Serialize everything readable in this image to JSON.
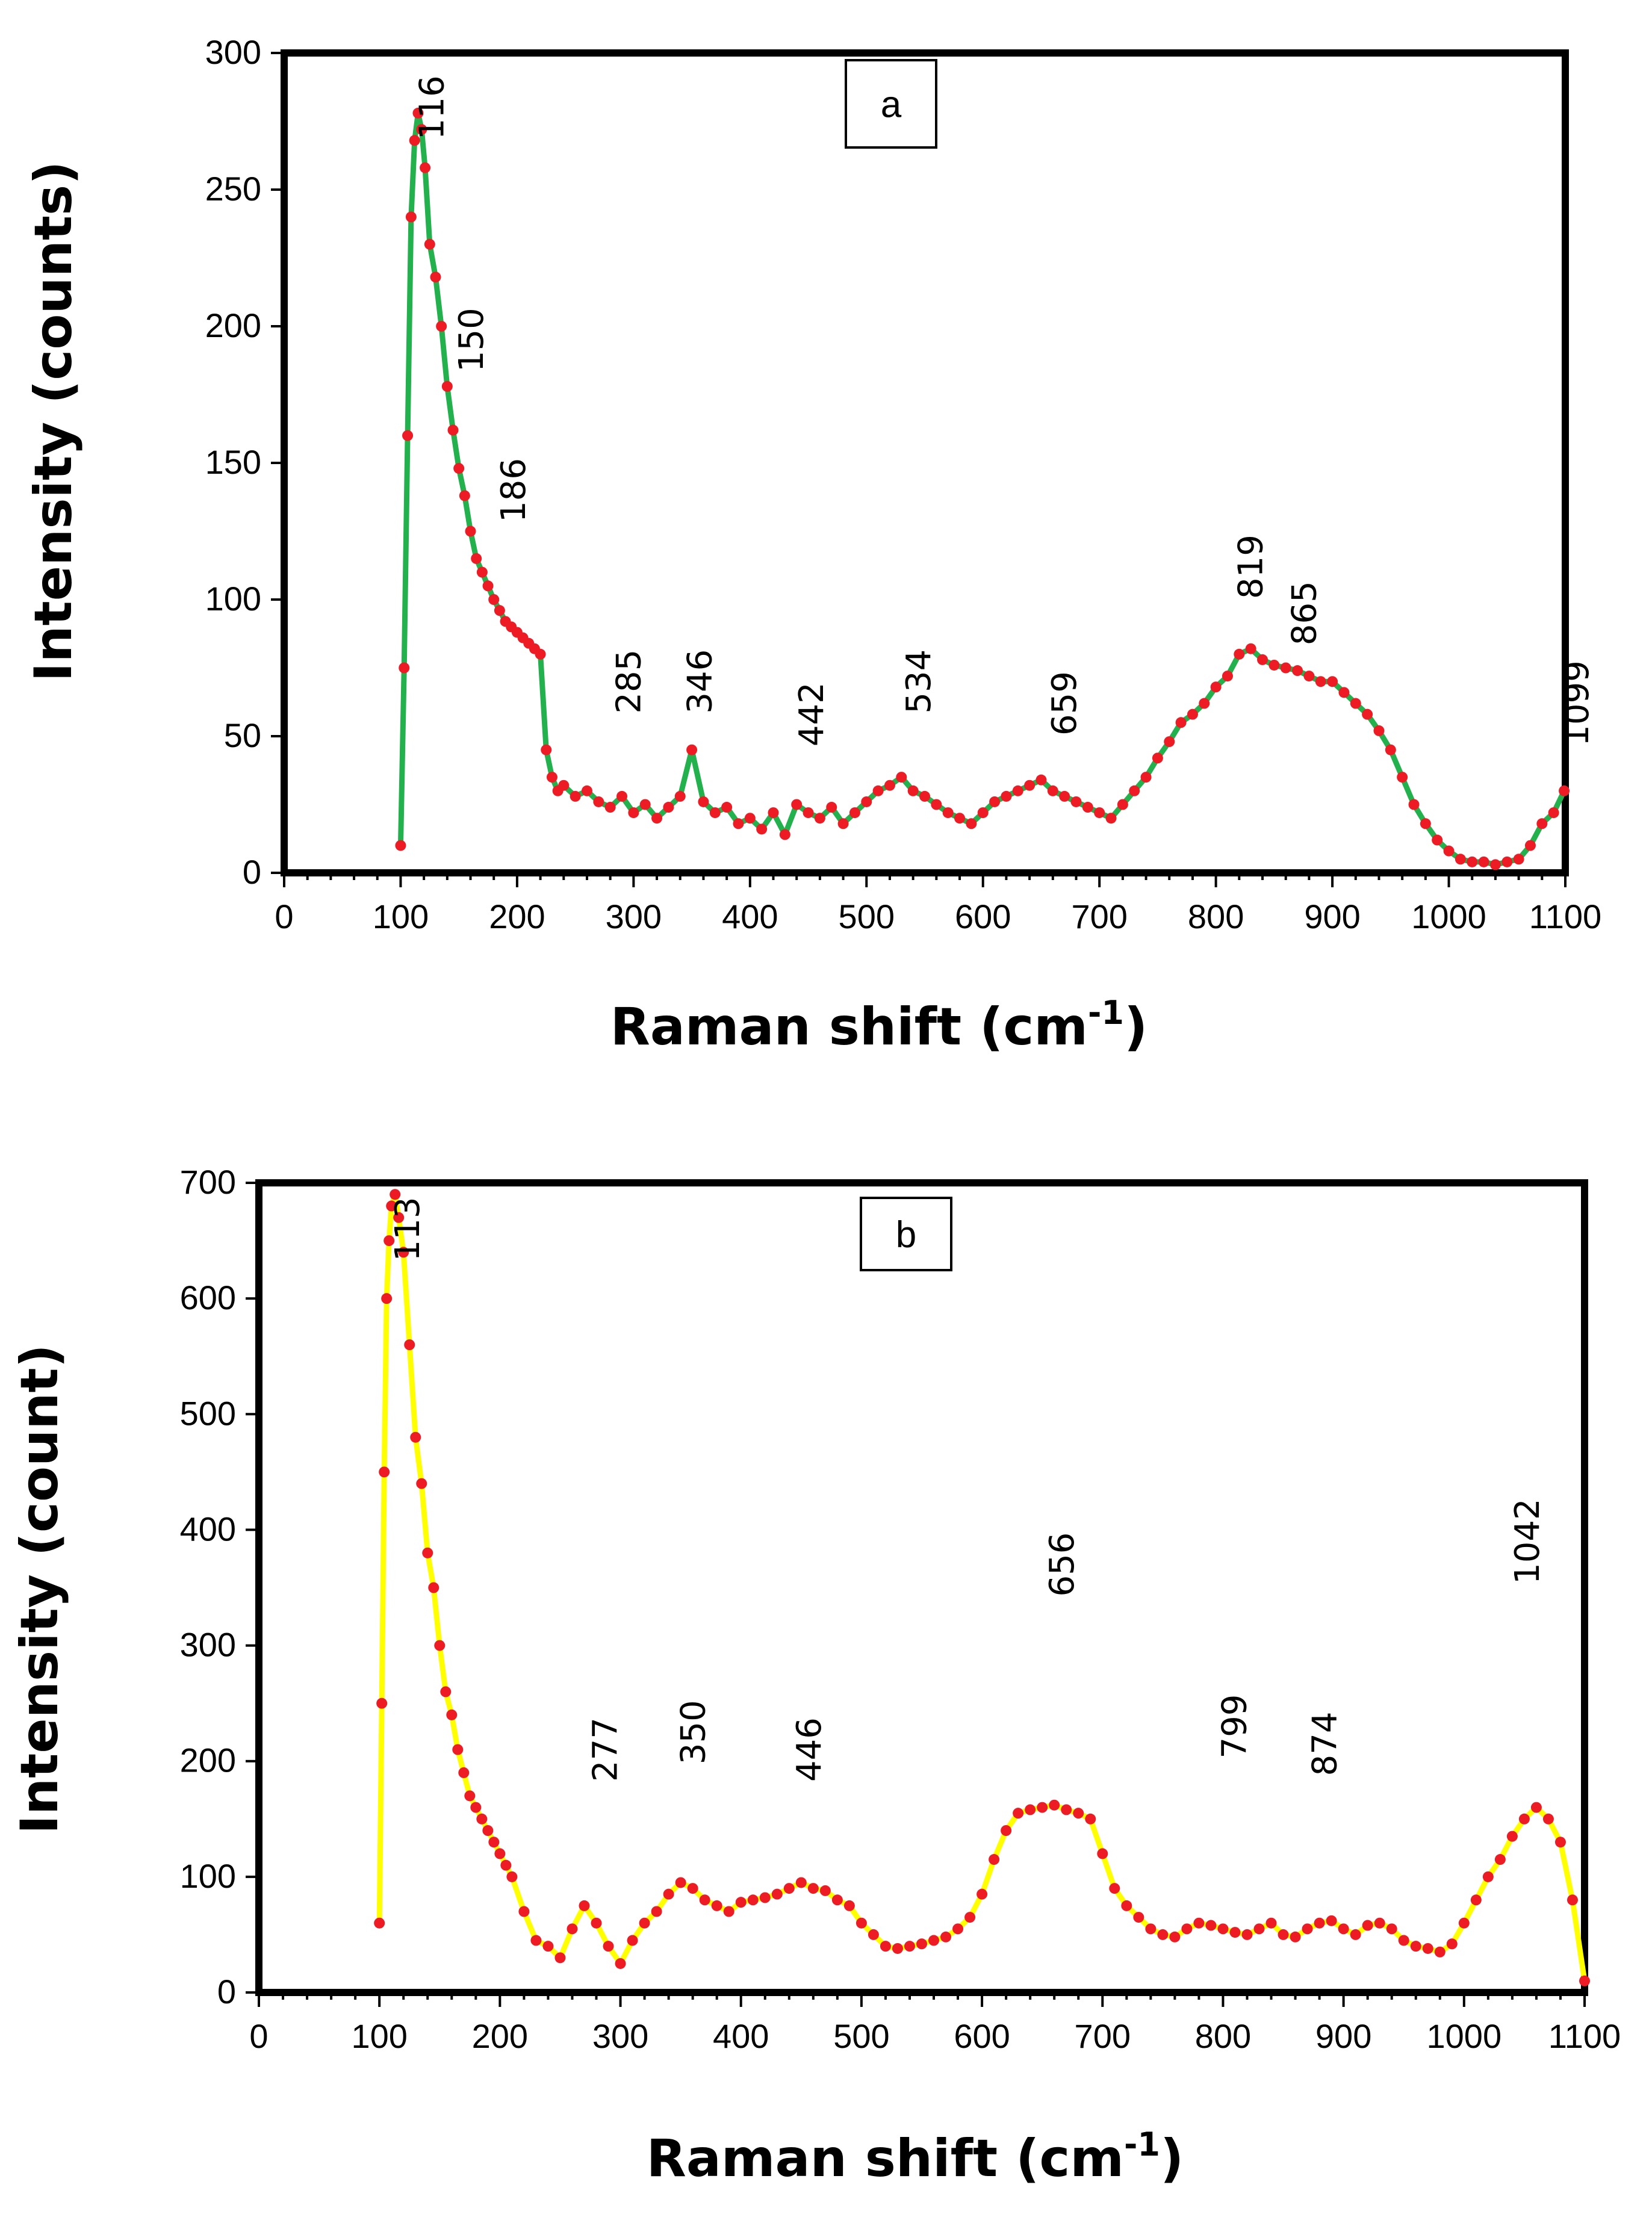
{
  "chart_data": [
    {
      "type": "line",
      "panel_label": "a",
      "xlabel": "Raman shift (cm",
      "xlabel_sup": "-1",
      "xlabel_close": ")",
      "ylabel": "Intensity (counts)",
      "xlim": [
        0,
        1100
      ],
      "ylim": [
        0,
        300
      ],
      "xticks": [
        0,
        100,
        200,
        300,
        400,
        500,
        600,
        700,
        800,
        900,
        1000,
        1100
      ],
      "yticks": [
        0,
        50,
        100,
        150,
        200,
        250,
        300
      ],
      "line_color": "#22b14c",
      "marker_color": "#ed1c24",
      "peaks": [
        {
          "x": 116,
          "label": "116",
          "label_y": 280
        },
        {
          "x": 150,
          "label": "150",
          "label_y": 195
        },
        {
          "x": 186,
          "label": "186",
          "label_y": 140
        },
        {
          "x": 285,
          "label": "285",
          "label_y": 70
        },
        {
          "x": 346,
          "label": "346",
          "label_y": 70
        },
        {
          "x": 442,
          "label": "442",
          "label_y": 58
        },
        {
          "x": 534,
          "label": "534",
          "label_y": 70
        },
        {
          "x": 659,
          "label": "659",
          "label_y": 62
        },
        {
          "x": 819,
          "label": "819",
          "label_y": 112
        },
        {
          "x": 865,
          "label": "865",
          "label_y": 95
        },
        {
          "x": 1099,
          "label": "1099",
          "label_y": 62
        }
      ],
      "series": [
        {
          "name": "spectrum",
          "x": [
            100,
            103,
            106,
            109,
            112,
            115,
            118,
            121,
            125,
            130,
            135,
            140,
            145,
            150,
            155,
            160,
            165,
            170,
            175,
            180,
            185,
            190,
            195,
            200,
            205,
            210,
            215,
            220,
            225,
            230,
            235,
            240,
            250,
            260,
            270,
            280,
            290,
            300,
            310,
            320,
            330,
            340,
            350,
            360,
            370,
            380,
            390,
            400,
            410,
            420,
            430,
            440,
            450,
            460,
            470,
            480,
            490,
            500,
            510,
            520,
            530,
            540,
            550,
            560,
            570,
            580,
            590,
            600,
            610,
            620,
            630,
            640,
            650,
            660,
            670,
            680,
            690,
            700,
            710,
            720,
            730,
            740,
            750,
            760,
            770,
            780,
            790,
            800,
            810,
            820,
            830,
            840,
            850,
            860,
            870,
            880,
            890,
            900,
            910,
            920,
            930,
            940,
            950,
            960,
            970,
            980,
            990,
            1000,
            1010,
            1020,
            1030,
            1040,
            1050,
            1060,
            1070,
            1080,
            1090,
            1099
          ],
          "y": [
            10,
            75,
            160,
            240,
            268,
            278,
            272,
            258,
            230,
            218,
            200,
            178,
            162,
            148,
            138,
            125,
            115,
            110,
            105,
            100,
            96,
            92,
            90,
            88,
            86,
            84,
            82,
            80,
            45,
            35,
            30,
            32,
            28,
            30,
            26,
            24,
            28,
            22,
            25,
            20,
            24,
            28,
            45,
            26,
            22,
            24,
            18,
            20,
            16,
            22,
            14,
            25,
            22,
            20,
            24,
            18,
            22,
            26,
            30,
            32,
            35,
            30,
            28,
            25,
            22,
            20,
            18,
            22,
            26,
            28,
            30,
            32,
            34,
            30,
            28,
            26,
            24,
            22,
            20,
            25,
            30,
            35,
            42,
            48,
            55,
            58,
            62,
            68,
            72,
            80,
            82,
            78,
            76,
            75,
            74,
            72,
            70,
            70,
            66,
            62,
            58,
            52,
            45,
            35,
            25,
            18,
            12,
            8,
            5,
            4,
            4,
            3,
            4,
            5,
            10,
            18,
            22,
            30
          ]
        }
      ]
    },
    {
      "type": "line",
      "panel_label": "b",
      "xlabel": "Raman  shift (cm",
      "xlabel_sup": "-1",
      "xlabel_close": ")",
      "ylabel": "Intensity (count)",
      "xlim": [
        0,
        1100
      ],
      "ylim": [
        0,
        700
      ],
      "xticks": [
        0,
        100,
        200,
        300,
        400,
        500,
        600,
        700,
        800,
        900,
        1000,
        1100
      ],
      "yticks": [
        0,
        100,
        200,
        300,
        400,
        500,
        600,
        700
      ],
      "line_color": "#ffff00",
      "marker_color": "#ed1c24",
      "peaks": [
        {
          "x": 113,
          "label": "113",
          "label_y": 660
        },
        {
          "x": 277,
          "label": "277",
          "label_y": 210
        },
        {
          "x": 350,
          "label": "350",
          "label_y": 225
        },
        {
          "x": 446,
          "label": "446",
          "label_y": 210
        },
        {
          "x": 656,
          "label": "656",
          "label_y": 370
        },
        {
          "x": 799,
          "label": "799",
          "label_y": 230
        },
        {
          "x": 874,
          "label": "874",
          "label_y": 215
        },
        {
          "x": 1042,
          "label": "1042",
          "label_y": 390
        }
      ],
      "series": [
        {
          "name": "spectrum",
          "x": [
            100,
            102,
            104,
            106,
            108,
            110,
            113,
            116,
            120,
            125,
            130,
            135,
            140,
            145,
            150,
            155,
            160,
            165,
            170,
            175,
            180,
            185,
            190,
            195,
            200,
            205,
            210,
            220,
            230,
            240,
            250,
            260,
            270,
            280,
            290,
            300,
            310,
            320,
            330,
            340,
            350,
            360,
            370,
            380,
            390,
            400,
            410,
            420,
            430,
            440,
            450,
            460,
            470,
            480,
            490,
            500,
            510,
            520,
            530,
            540,
            550,
            560,
            570,
            580,
            590,
            600,
            610,
            620,
            630,
            640,
            650,
            660,
            670,
            680,
            690,
            700,
            710,
            720,
            730,
            740,
            750,
            760,
            770,
            780,
            790,
            800,
            810,
            820,
            830,
            840,
            850,
            860,
            870,
            880,
            890,
            900,
            910,
            920,
            930,
            940,
            950,
            960,
            970,
            980,
            990,
            1000,
            1010,
            1020,
            1030,
            1040,
            1050,
            1060,
            1070,
            1080,
            1090,
            1100
          ],
          "y": [
            60,
            250,
            450,
            600,
            650,
            680,
            690,
            670,
            640,
            560,
            480,
            440,
            380,
            350,
            300,
            260,
            240,
            210,
            190,
            170,
            160,
            150,
            140,
            130,
            120,
            110,
            100,
            70,
            45,
            40,
            30,
            55,
            75,
            60,
            40,
            25,
            45,
            60,
            70,
            85,
            95,
            90,
            80,
            75,
            70,
            78,
            80,
            82,
            85,
            90,
            95,
            90,
            88,
            80,
            75,
            60,
            50,
            40,
            38,
            40,
            42,
            45,
            48,
            55,
            65,
            85,
            115,
            140,
            155,
            158,
            160,
            162,
            158,
            155,
            150,
            120,
            90,
            75,
            65,
            55,
            50,
            48,
            55,
            60,
            58,
            55,
            52,
            50,
            55,
            60,
            50,
            48,
            55,
            60,
            62,
            55,
            50,
            58,
            60,
            55,
            45,
            40,
            38,
            35,
            42,
            60,
            80,
            100,
            115,
            135,
            150,
            160,
            150,
            130,
            80,
            10
          ]
        }
      ]
    }
  ]
}
